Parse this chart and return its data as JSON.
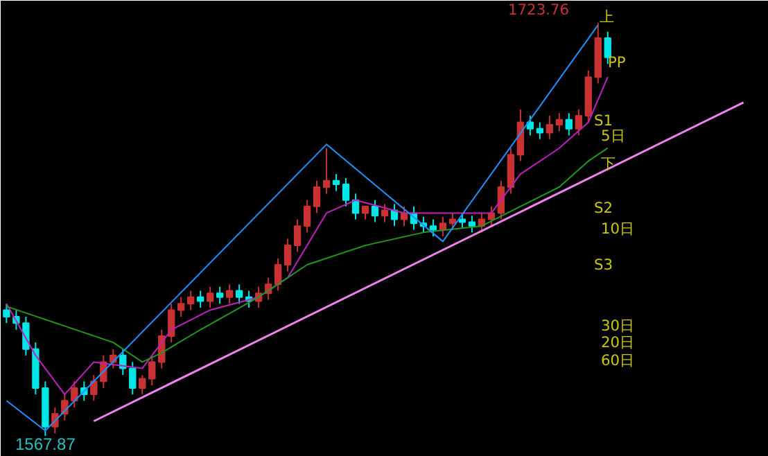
{
  "chart_data": {
    "type": "candlestick",
    "categories": [
      null,
      null,
      null,
      null,
      null,
      null,
      null,
      null,
      null,
      null,
      null,
      null,
      null,
      null,
      null,
      null,
      null,
      null,
      null,
      null,
      null,
      null,
      null,
      null,
      null,
      null,
      null,
      null,
      null,
      null,
      null,
      null,
      null,
      null,
      null,
      null,
      null,
      null,
      null,
      null,
      null,
      null,
      null,
      null,
      null,
      null,
      null,
      null,
      null,
      null,
      null,
      null,
      null,
      null,
      null,
      null,
      null,
      null,
      null,
      null,
      null,
      null,
      null,
      null,
      null,
      null,
      null,
      null,
      null,
      null,
      null,
      null,
      null,
      null,
      null,
      null,
      null,
      null,
      null
    ],
    "ohlc": [
      [
        1615.3,
        1617.7,
        1610.4,
        1612.8
      ],
      [
        1612.8,
        1615.3,
        1607.9,
        1610.4
      ],
      [
        1610.4,
        1612.8,
        1598.2,
        1600.6
      ],
      [
        1600.6,
        1603.1,
        1583.5,
        1585.9
      ],
      [
        1585.9,
        1588.4,
        1567.87,
        1571.3
      ],
      [
        1571.3,
        1578.6,
        1568.8,
        1576.2
      ],
      [
        1576.2,
        1583.5,
        1573.7,
        1581.1
      ],
      [
        1581.1,
        1588.4,
        1578.6,
        1585.9
      ],
      [
        1585.9,
        1588.4,
        1581.1,
        1583.5
      ],
      [
        1583.5,
        1590.8,
        1581.1,
        1588.4
      ],
      [
        1588.4,
        1598.2,
        1585.9,
        1595.7
      ],
      [
        1595.7,
        1600.6,
        1593.3,
        1598.2
      ],
      [
        1598.2,
        1600.6,
        1590.8,
        1593.3
      ],
      [
        1593.3,
        1595.7,
        1583.5,
        1585.9
      ],
      [
        1585.9,
        1590.8,
        1583.5,
        1589.4
      ],
      [
        1589.4,
        1598.2,
        1586.9,
        1595.7
      ],
      [
        1595.7,
        1607.9,
        1593.3,
        1605.5
      ],
      [
        1605.5,
        1617.7,
        1603.1,
        1615.3
      ],
      [
        1615.3,
        1620.2,
        1612.8,
        1617.7
      ],
      [
        1617.7,
        1622.6,
        1615.3,
        1620.2
      ],
      [
        1620.2,
        1622.6,
        1616.2,
        1618.7
      ],
      [
        1618.7,
        1624.1,
        1616.2,
        1621.6
      ],
      [
        1621.6,
        1624.1,
        1617.7,
        1620.2
      ],
      [
        1620.2,
        1625.0,
        1617.7,
        1622.6
      ],
      [
        1622.6,
        1625.0,
        1617.7,
        1620.2
      ],
      [
        1620.2,
        1622.6,
        1616.2,
        1618.7
      ],
      [
        1618.7,
        1624.1,
        1616.2,
        1621.6
      ],
      [
        1621.6,
        1627.5,
        1619.2,
        1625.0
      ],
      [
        1625.0,
        1634.8,
        1622.6,
        1632.4
      ],
      [
        1632.4,
        1642.2,
        1629.9,
        1639.7
      ],
      [
        1639.7,
        1649.5,
        1637.3,
        1647.0
      ],
      [
        1647.0,
        1656.8,
        1644.6,
        1654.4
      ],
      [
        1654.4,
        1664.1,
        1651.9,
        1661.7
      ],
      [
        1661.7,
        1676.4,
        1659.2,
        1664.1
      ],
      [
        1664.1,
        1666.6,
        1660.2,
        1662.7
      ],
      [
        1662.7,
        1665.1,
        1654.4,
        1656.8
      ],
      [
        1656.8,
        1659.2,
        1649.5,
        1651.9
      ],
      [
        1651.9,
        1654.4,
        1649.5,
        1654.4
      ],
      [
        1654.4,
        1656.8,
        1648.5,
        1650.9
      ],
      [
        1650.9,
        1655.3,
        1648.5,
        1652.9
      ],
      [
        1652.9,
        1655.3,
        1647.0,
        1649.5
      ],
      [
        1649.5,
        1654.4,
        1647.0,
        1651.9
      ],
      [
        1651.9,
        1654.4,
        1645.6,
        1648.0
      ],
      [
        1648.0,
        1650.5,
        1644.6,
        1647.0
      ],
      [
        1647.0,
        1649.5,
        1643.1,
        1645.6
      ],
      [
        1645.6,
        1650.5,
        1643.1,
        1648.0
      ],
      [
        1648.0,
        1651.9,
        1645.6,
        1649.5
      ],
      [
        1649.5,
        1651.9,
        1646.1,
        1648.5
      ],
      [
        1648.5,
        1650.9,
        1644.6,
        1647.0
      ],
      [
        1647.0,
        1651.9,
        1644.6,
        1649.5
      ],
      [
        1649.5,
        1654.4,
        1647.0,
        1651.9
      ],
      [
        1651.9,
        1664.1,
        1649.5,
        1661.7
      ],
      [
        1661.7,
        1676.4,
        1659.2,
        1673.9
      ],
      [
        1673.9,
        1691.0,
        1671.5,
        1686.1
      ],
      [
        1686.1,
        1688.6,
        1681.2,
        1683.7
      ],
      [
        1683.7,
        1686.1,
        1679.8,
        1682.2
      ],
      [
        1682.2,
        1688.6,
        1679.8,
        1685.2
      ],
      [
        1685.2,
        1689.6,
        1682.7,
        1687.1
      ],
      [
        1687.1,
        1689.6,
        1681.2,
        1683.7
      ],
      [
        1683.7,
        1691.0,
        1681.2,
        1688.6
      ],
      [
        1688.6,
        1705.7,
        1686.1,
        1703.2
      ],
      [
        1703.2,
        1723.76,
        1700.8,
        1717.9
      ],
      [
        1717.9,
        1720.3,
        1708.1,
        1710.6
      ],
      null,
      null,
      null,
      null,
      null,
      null,
      null,
      null,
      null,
      null,
      null,
      null,
      null,
      null,
      null,
      null
    ],
    "colors": [
      "#00e5e5",
      "#00e5e5",
      "#00e5e5",
      "#00e5e5",
      "#00e5e5",
      "#c83232",
      "#c83232",
      "#c83232",
      "#00e5e5",
      "#c83232",
      "#c83232",
      "#c83232",
      "#00e5e5",
      "#00e5e5",
      "#c83232",
      "#c83232",
      "#c83232",
      "#c83232",
      "#c83232",
      "#c83232",
      "#00e5e5",
      "#c83232",
      "#00e5e5",
      "#c83232",
      "#00e5e5",
      "#00e5e5",
      "#c83232",
      "#c83232",
      "#c83232",
      "#c83232",
      "#c83232",
      "#c83232",
      "#c83232",
      "#c83232",
      "#00e5e5",
      "#00e5e5",
      "#00e5e5",
      "#c83232",
      "#00e5e5",
      "#c83232",
      "#00e5e5",
      "#c83232",
      "#00e5e5",
      "#00e5e5",
      "#00e5e5",
      "#c83232",
      "#c83232",
      "#00e5e5",
      "#00e5e5",
      "#c83232",
      "#c83232",
      "#c83232",
      "#c83232",
      "#c83232",
      "#00e5e5",
      "#00e5e5",
      "#c83232",
      "#c83232",
      "#00e5e5",
      "#c83232",
      "#c83232",
      "#c83232",
      "#00e5e5",
      null,
      null,
      null,
      null,
      null,
      null,
      null,
      null,
      null,
      null,
      null,
      null,
      null,
      null,
      null,
      null
    ],
    "series": [
      {
        "type": "line",
        "color": "#c020c0",
        "values": [
          1617.7,
          null,
          null,
          1598.2,
          null,
          null,
          1583.5,
          null,
          null,
          1595.7,
          null,
          null,
          null,
          null,
          1593.3,
          null,
          null,
          1607.9,
          null,
          null,
          null,
          1615.3,
          null,
          null,
          null,
          null,
          1620.2,
          null,
          null,
          1627.5,
          null,
          null,
          null,
          1651.9,
          null,
          null,
          1656.8,
          null,
          null,
          null,
          null,
          1651.9,
          null,
          null,
          null,
          null,
          null,
          1651.9,
          null,
          null,
          1651.9,
          null,
          null,
          1666.6,
          null,
          null,
          1673.9,
          1676.4,
          null,
          null,
          1686.1,
          null,
          1703.2,
          null,
          null,
          null,
          null,
          null,
          null,
          null,
          null,
          null,
          null,
          null,
          null,
          null,
          null,
          null,
          null
        ]
      },
      {
        "type": "line",
        "color": "#1f9a1f",
        "values": [
          1616.7,
          null,
          null,
          null,
          null,
          null,
          null,
          null,
          null,
          null,
          null,
          1603.1,
          null,
          null,
          1595.7,
          null,
          1599.2,
          null,
          null,
          null,
          1607.9,
          null,
          null,
          null,
          null,
          null,
          1620.2,
          null,
          null,
          null,
          null,
          1632.4,
          null,
          null,
          null,
          null,
          null,
          1639.7,
          null,
          null,
          null,
          null,
          null,
          1644.6,
          null,
          null,
          null,
          null,
          null,
          1647.0,
          null,
          null,
          null,
          1654.4,
          null,
          null,
          null,
          1661.7,
          null,
          null,
          1671.5,
          null,
          1676.4,
          null,
          null,
          null,
          null,
          null,
          null,
          null,
          null,
          null,
          null,
          null,
          null,
          null,
          null,
          null,
          null
        ]
      },
      {
        "type": "line",
        "color": "#ee82ee",
        "values": [
          null,
          null,
          null,
          null,
          null,
          null,
          null,
          null,
          null,
          1573.4,
          null,
          null,
          null,
          null,
          null,
          null,
          null,
          null,
          null,
          null,
          null,
          null,
          null,
          null,
          null,
          null,
          null,
          null,
          null,
          null,
          null,
          null,
          null,
          null,
          null,
          null,
          null,
          null,
          null,
          null,
          null,
          null,
          null,
          null,
          null,
          null,
          null,
          null,
          null,
          null,
          null,
          null,
          null,
          null,
          null,
          null,
          null,
          null,
          null,
          null,
          null,
          null,
          null,
          null,
          null,
          null,
          null,
          null,
          null,
          null,
          null,
          null,
          null,
          null,
          null,
          null,
          1693.6,
          null,
          null
        ]
      },
      {
        "type": "line",
        "color": "#1e90ff",
        "values": [
          1581.1,
          null,
          null,
          null,
          1569.8,
          null,
          null,
          null,
          null,
          null,
          null,
          null,
          null,
          null,
          null,
          null,
          null,
          null,
          null,
          null,
          null,
          null,
          null,
          null,
          null,
          null,
          null,
          null,
          null,
          null,
          null,
          null,
          null,
          1677.8,
          null,
          null,
          null,
          null,
          null,
          null,
          null,
          null,
          null,
          null,
          null,
          1641.2,
          null,
          null,
          null,
          null,
          null,
          null,
          null,
          null,
          null,
          null,
          null,
          null,
          null,
          null,
          null,
          1722.8,
          null,
          null,
          null,
          null,
          null,
          null,
          null,
          null,
          null,
          null,
          null,
          null,
          null,
          null,
          null,
          null,
          null
        ]
      }
    ],
    "ylim": [
      1560,
      1732
    ],
    "tick_labels": false,
    "grid": false,
    "annotations": [
      {
        "text": "1567.87",
        "y": 1567.87
      },
      "1723.76",
      "上",
      "PP",
      "S1",
      "5日",
      "下",
      "S2",
      "10日",
      "S3",
      "30日",
      "20日",
      "60日"
    ]
  }
}
